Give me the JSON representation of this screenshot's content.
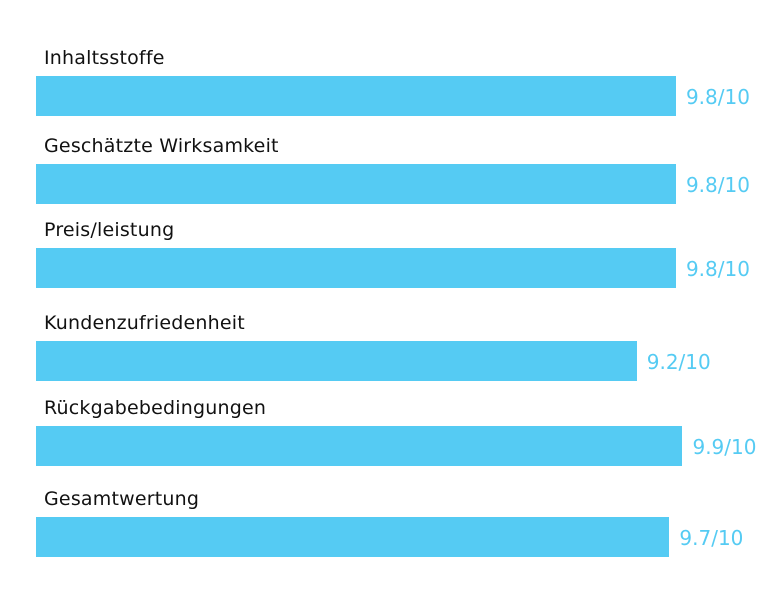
{
  "colors": {
    "bar": "#55cbf3",
    "value_text": "#55cbf3",
    "label_text": "#111111"
  },
  "chart_data": {
    "type": "bar",
    "orientation": "horizontal",
    "categories": [
      "Inhaltsstoffe",
      "Geschätzte Wirksamkeit",
      "Preis/leistung",
      "Kundenzufriedenheit",
      "Rückgabebedingungen",
      "Gesamtwertung"
    ],
    "values": [
      9.8,
      9.8,
      9.8,
      9.2,
      9.9,
      9.7
    ],
    "value_labels": [
      "9.8/10",
      "9.8/10",
      "9.8/10",
      "9.2/10",
      "9.9/10",
      "9.7/10"
    ],
    "xlim": [
      0,
      10
    ],
    "grid": false,
    "legend": "none"
  }
}
